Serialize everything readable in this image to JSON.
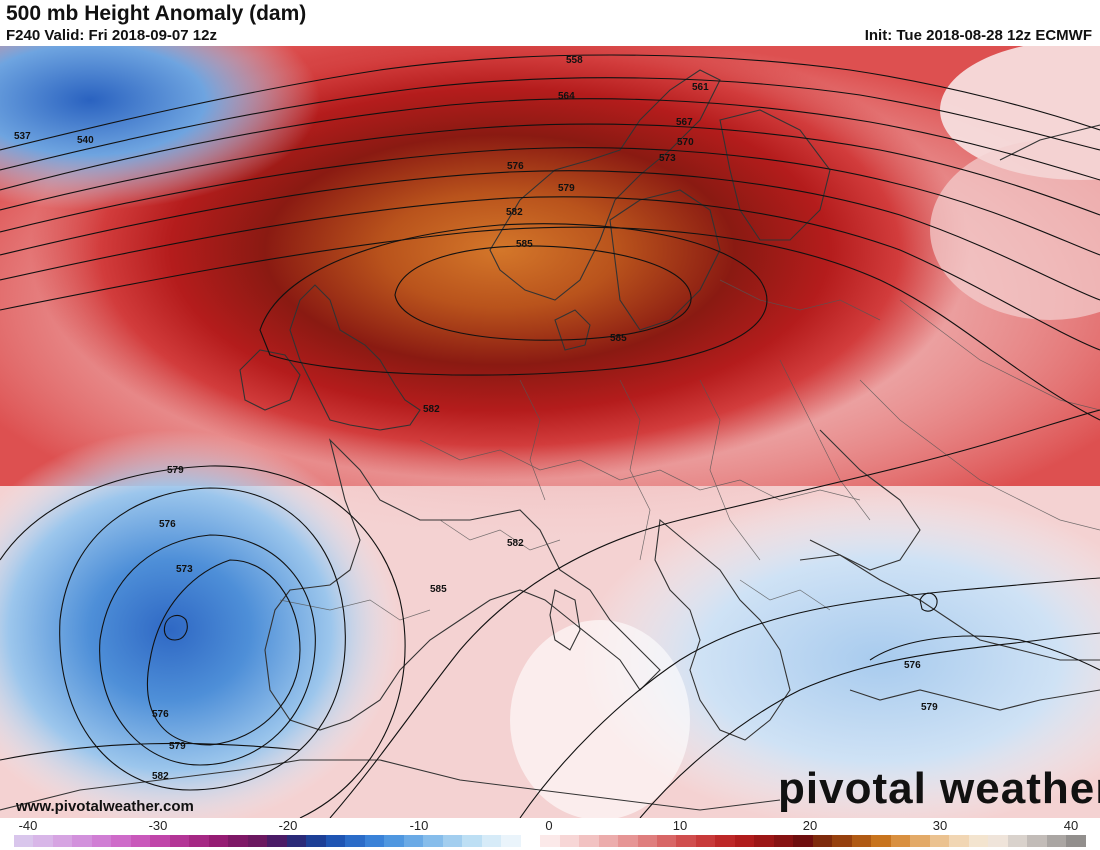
{
  "header": {
    "title": "500 mb Height Anomaly (dam)",
    "valid": "F240 Valid: Fri 2018-09-07 12z",
    "init": "Init: Tue 2018-08-28 12z ECMWF"
  },
  "footer": {
    "url": "www.pivotalweather.com",
    "brand": "pivotal weather"
  },
  "colorbar": {
    "ticks": [
      "-40",
      "-30",
      "-20",
      "-10",
      "0",
      "10",
      "20",
      "30",
      "40"
    ],
    "colors": [
      "#d9c6ec",
      "#d8b6e8",
      "#d6a4e2",
      "#d291dc",
      "#d07ed4",
      "#ce6bc9",
      "#c958bb",
      "#c045a9",
      "#b33596",
      "#a52884",
      "#951c73",
      "#7e1866",
      "#6b1860",
      "#4a1b66",
      "#2a2a78",
      "#1d3f96",
      "#1f55b3",
      "#2b6cc8",
      "#3a82d8",
      "#4f97e0",
      "#6aaae6",
      "#86bdeb",
      "#a2ceef",
      "#bddff4",
      "#d6ebf8",
      "#eaf4fb",
      "#ffffff",
      "#fbe9e9",
      "#f7d6d6",
      "#f2c2c2",
      "#ecacac",
      "#e69595",
      "#df7e7e",
      "#d86666",
      "#d04e4e",
      "#c83a3a",
      "#bd2828",
      "#b01c1c",
      "#9c1616",
      "#861212",
      "#6e0e0e",
      "#7e2a0c",
      "#96400e",
      "#b05a14",
      "#c8741e",
      "#d99040",
      "#e3aa68",
      "#ebc290",
      "#f1d6b4",
      "#f3e4cf",
      "#efe4da",
      "#d9d2cc",
      "#c2bcb8",
      "#aaa6a3",
      "#928f8d"
    ]
  },
  "contour_labels": [
    "537",
    "540",
    "558",
    "561",
    "564",
    "567",
    "570",
    "573",
    "576",
    "579",
    "582",
    "585"
  ]
}
